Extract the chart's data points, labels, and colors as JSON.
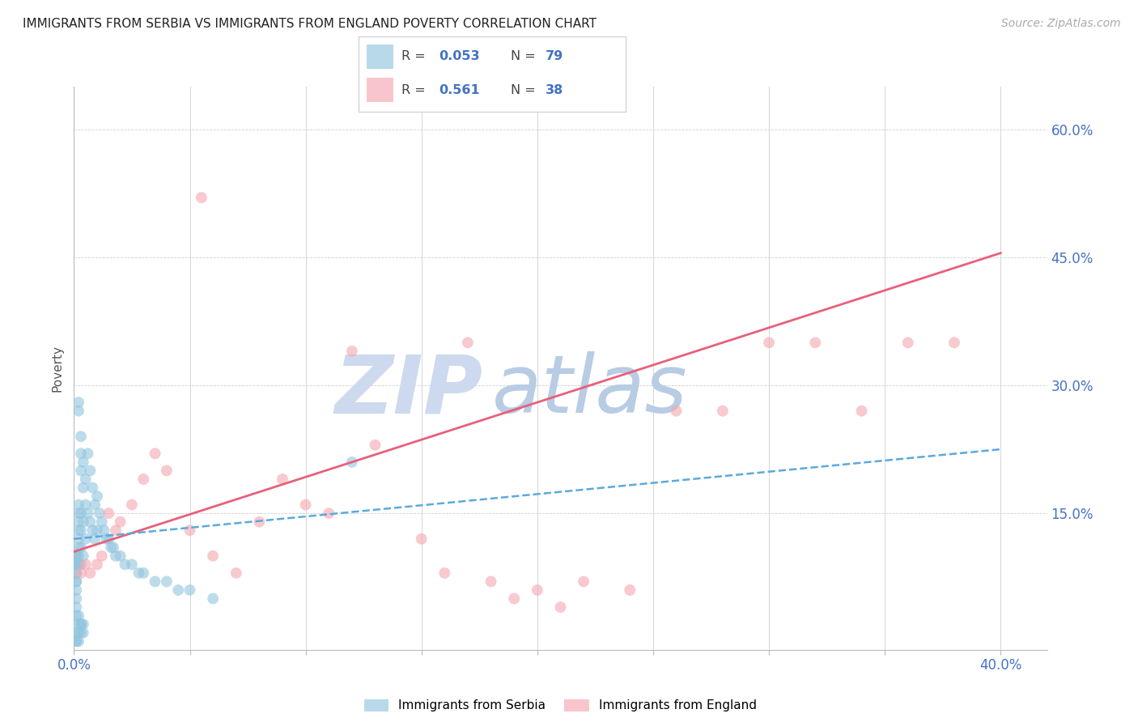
{
  "title": "IMMIGRANTS FROM SERBIA VS IMMIGRANTS FROM ENGLAND POVERTY CORRELATION CHART",
  "source": "Source: ZipAtlas.com",
  "ylabel": "Poverty",
  "xlim": [
    0.0,
    0.42
  ],
  "ylim": [
    -0.01,
    0.65
  ],
  "serbia_R": 0.053,
  "serbia_N": 79,
  "england_R": 0.561,
  "england_N": 38,
  "serbia_color": "#92c5de",
  "england_color": "#f4a6b0",
  "serbia_line_color": "#5aaadd",
  "england_line_color": "#e8607a",
  "watermark_zip_color": "#ccd9ee",
  "watermark_atlas_color": "#b8cce4",
  "serbia_scatter_x": [
    0.001,
    0.001,
    0.001,
    0.001,
    0.001,
    0.001,
    0.001,
    0.001,
    0.001,
    0.001,
    0.001,
    0.001,
    0.002,
    0.002,
    0.002,
    0.002,
    0.002,
    0.002,
    0.002,
    0.002,
    0.002,
    0.002,
    0.003,
    0.003,
    0.003,
    0.003,
    0.003,
    0.003,
    0.003,
    0.004,
    0.004,
    0.004,
    0.004,
    0.005,
    0.005,
    0.005,
    0.006,
    0.006,
    0.007,
    0.007,
    0.008,
    0.008,
    0.009,
    0.009,
    0.01,
    0.01,
    0.011,
    0.012,
    0.013,
    0.014,
    0.015,
    0.016,
    0.017,
    0.018,
    0.02,
    0.022,
    0.025,
    0.028,
    0.03,
    0.035,
    0.04,
    0.045,
    0.05,
    0.06,
    0.001,
    0.001,
    0.002,
    0.002,
    0.003,
    0.003,
    0.004,
    0.12,
    0.001,
    0.002,
    0.003,
    0.004,
    0.002,
    0.001,
    0.001
  ],
  "serbia_scatter_y": [
    0.1,
    0.1,
    0.1,
    0.09,
    0.09,
    0.09,
    0.08,
    0.08,
    0.07,
    0.07,
    0.06,
    0.05,
    0.28,
    0.27,
    0.16,
    0.15,
    0.14,
    0.13,
    0.12,
    0.11,
    0.1,
    0.09,
    0.24,
    0.22,
    0.2,
    0.15,
    0.13,
    0.11,
    0.09,
    0.21,
    0.18,
    0.14,
    0.1,
    0.19,
    0.16,
    0.12,
    0.22,
    0.15,
    0.2,
    0.14,
    0.18,
    0.13,
    0.16,
    0.12,
    0.17,
    0.13,
    0.15,
    0.14,
    0.13,
    0.12,
    0.12,
    0.11,
    0.11,
    0.1,
    0.1,
    0.09,
    0.09,
    0.08,
    0.08,
    0.07,
    0.07,
    0.06,
    0.06,
    0.05,
    0.04,
    0.03,
    0.03,
    0.02,
    0.02,
    0.02,
    0.02,
    0.21,
    0.01,
    0.01,
    0.01,
    0.01,
    0.0,
    0.0,
    0.0
  ],
  "england_scatter_x": [
    0.003,
    0.005,
    0.007,
    0.01,
    0.012,
    0.015,
    0.018,
    0.02,
    0.025,
    0.03,
    0.035,
    0.04,
    0.05,
    0.055,
    0.06,
    0.07,
    0.08,
    0.09,
    0.1,
    0.11,
    0.12,
    0.13,
    0.15,
    0.16,
    0.17,
    0.18,
    0.19,
    0.2,
    0.21,
    0.22,
    0.24,
    0.26,
    0.28,
    0.3,
    0.32,
    0.34,
    0.36,
    0.38
  ],
  "england_scatter_y": [
    0.08,
    0.09,
    0.08,
    0.09,
    0.1,
    0.15,
    0.13,
    0.14,
    0.16,
    0.19,
    0.22,
    0.2,
    0.13,
    0.52,
    0.1,
    0.08,
    0.14,
    0.19,
    0.16,
    0.15,
    0.34,
    0.23,
    0.12,
    0.08,
    0.35,
    0.07,
    0.05,
    0.06,
    0.04,
    0.07,
    0.06,
    0.27,
    0.27,
    0.35,
    0.35,
    0.27,
    0.35,
    0.35
  ],
  "england_line_x0": 0.0,
  "england_line_y0": 0.105,
  "england_line_x1": 0.4,
  "england_line_y1": 0.455,
  "serbia_line_x0": 0.0,
  "serbia_line_y0": 0.12,
  "serbia_line_x1": 0.4,
  "serbia_line_y1": 0.225
}
